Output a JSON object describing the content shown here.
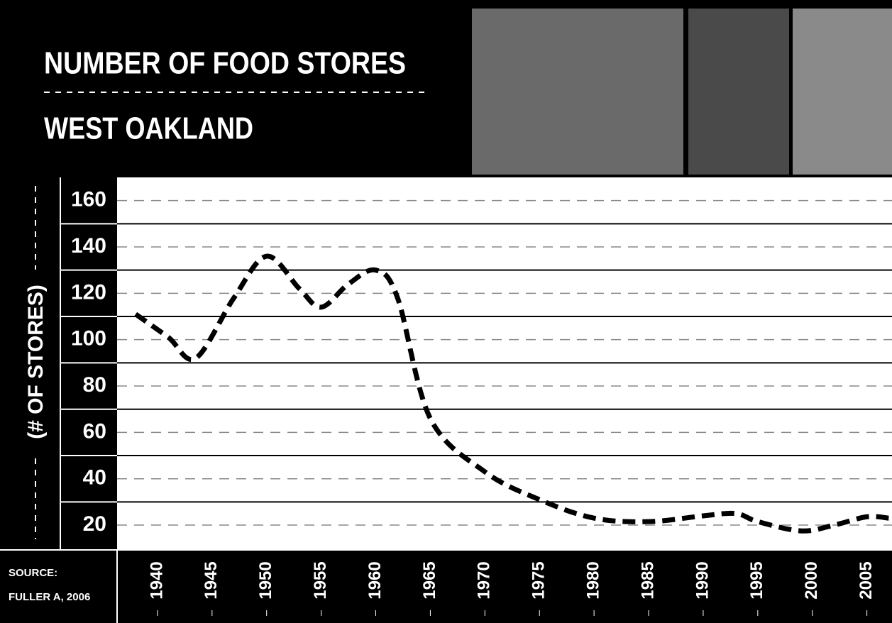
{
  "chart_data": {
    "type": "line",
    "title": "NUMBER OF FOOD STORES",
    "subtitle": "WEST OAKLAND",
    "y_label": "(# OF STORES)",
    "source_label": "SOURCE:",
    "source": "FULLER A, 2006",
    "x": [
      1938,
      1941,
      1943.5,
      1947,
      1950,
      1953,
      1955,
      1957.5,
      1960,
      1962,
      1965,
      1970,
      1975,
      1980,
      1985,
      1990,
      1993,
      1995,
      1999,
      2002,
      2005,
      2007
    ],
    "series": [
      {
        "color": "#000000",
        "values": [
          111,
          101,
          92,
          118,
          136,
          122,
          114,
          124,
          130,
          118,
          66,
          43,
          31,
          23,
          21.5,
          24,
          25,
          21.5,
          17.5,
          20,
          23.6,
          23
        ]
      }
    ],
    "xlim": [
      1936.3,
      2007.3
    ],
    "xticks": [
      1940,
      1945,
      1950,
      1955,
      1960,
      1965,
      1970,
      1975,
      1980,
      1985,
      1990,
      1995,
      2000,
      2005
    ],
    "ylim": [
      9.3,
      170
    ],
    "yticks": [
      20,
      40,
      60,
      80,
      100,
      120,
      140,
      160
    ],
    "grid": true
  }
}
